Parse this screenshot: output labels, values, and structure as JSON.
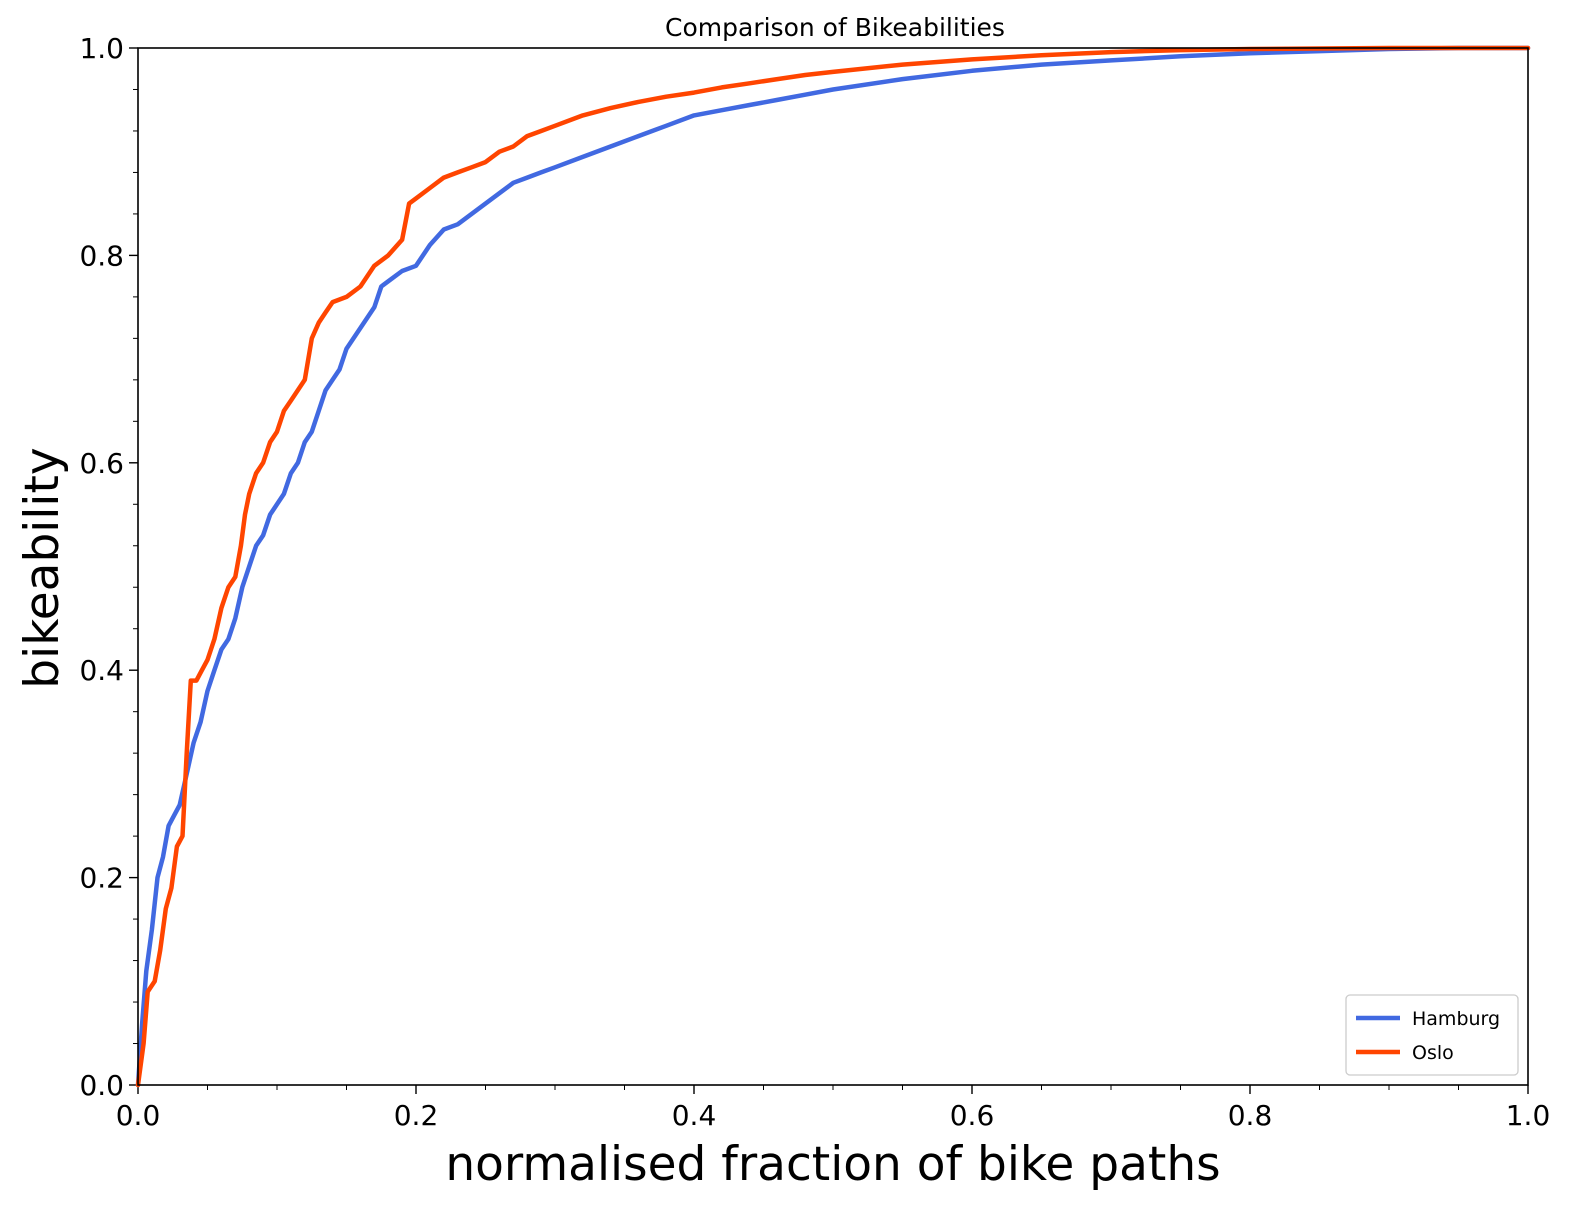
{
  "chart_data": {
    "type": "line",
    "title": "Comparison of Bikeabilities",
    "xlabel": "normalised fraction of bike paths",
    "ylabel": "bikeability",
    "xlim": [
      0.0,
      1.0
    ],
    "ylim": [
      0.0,
      1.0
    ],
    "x_ticks": [
      "0.0",
      "0.2",
      "0.4",
      "0.6",
      "0.8",
      "1.0"
    ],
    "y_ticks": [
      "0.0",
      "0.2",
      "0.4",
      "0.6",
      "0.8",
      "1.0"
    ],
    "grid": false,
    "legend_position": "bottom-right",
    "series": [
      {
        "name": "Hamburg",
        "color": "#4169e1",
        "points": [
          [
            0.0,
            0.0
          ],
          [
            0.003,
            0.06
          ],
          [
            0.006,
            0.11
          ],
          [
            0.01,
            0.15
          ],
          [
            0.014,
            0.2
          ],
          [
            0.018,
            0.22
          ],
          [
            0.022,
            0.25
          ],
          [
            0.026,
            0.26
          ],
          [
            0.03,
            0.27
          ],
          [
            0.035,
            0.3
          ],
          [
            0.04,
            0.33
          ],
          [
            0.045,
            0.35
          ],
          [
            0.05,
            0.38
          ],
          [
            0.055,
            0.4
          ],
          [
            0.06,
            0.42
          ],
          [
            0.065,
            0.43
          ],
          [
            0.07,
            0.45
          ],
          [
            0.075,
            0.48
          ],
          [
            0.08,
            0.5
          ],
          [
            0.085,
            0.52
          ],
          [
            0.09,
            0.53
          ],
          [
            0.095,
            0.55
          ],
          [
            0.1,
            0.56
          ],
          [
            0.105,
            0.57
          ],
          [
            0.11,
            0.59
          ],
          [
            0.115,
            0.6
          ],
          [
            0.12,
            0.62
          ],
          [
            0.125,
            0.63
          ],
          [
            0.13,
            0.65
          ],
          [
            0.135,
            0.67
          ],
          [
            0.14,
            0.68
          ],
          [
            0.145,
            0.69
          ],
          [
            0.15,
            0.71
          ],
          [
            0.16,
            0.73
          ],
          [
            0.17,
            0.75
          ],
          [
            0.175,
            0.77
          ],
          [
            0.18,
            0.775
          ],
          [
            0.19,
            0.785
          ],
          [
            0.2,
            0.79
          ],
          [
            0.21,
            0.81
          ],
          [
            0.22,
            0.825
          ],
          [
            0.23,
            0.83
          ],
          [
            0.24,
            0.84
          ],
          [
            0.25,
            0.85
          ],
          [
            0.26,
            0.86
          ],
          [
            0.27,
            0.87
          ],
          [
            0.28,
            0.875
          ],
          [
            0.29,
            0.88
          ],
          [
            0.3,
            0.885
          ],
          [
            0.32,
            0.895
          ],
          [
            0.34,
            0.905
          ],
          [
            0.36,
            0.915
          ],
          [
            0.38,
            0.925
          ],
          [
            0.4,
            0.935
          ],
          [
            0.42,
            0.94
          ],
          [
            0.44,
            0.945
          ],
          [
            0.46,
            0.95
          ],
          [
            0.48,
            0.955
          ],
          [
            0.5,
            0.96
          ],
          [
            0.55,
            0.97
          ],
          [
            0.6,
            0.978
          ],
          [
            0.65,
            0.984
          ],
          [
            0.7,
            0.988
          ],
          [
            0.75,
            0.992
          ],
          [
            0.8,
            0.995
          ],
          [
            0.85,
            0.997
          ],
          [
            0.9,
            0.999
          ],
          [
            0.95,
            1.0
          ],
          [
            1.0,
            1.0
          ]
        ]
      },
      {
        "name": "Oslo",
        "color": "#ff4500",
        "points": [
          [
            0.0,
            0.0
          ],
          [
            0.004,
            0.04
          ],
          [
            0.007,
            0.09
          ],
          [
            0.012,
            0.1
          ],
          [
            0.016,
            0.13
          ],
          [
            0.02,
            0.17
          ],
          [
            0.024,
            0.19
          ],
          [
            0.028,
            0.23
          ],
          [
            0.032,
            0.24
          ],
          [
            0.035,
            0.32
          ],
          [
            0.038,
            0.39
          ],
          [
            0.042,
            0.39
          ],
          [
            0.046,
            0.4
          ],
          [
            0.05,
            0.41
          ],
          [
            0.055,
            0.43
          ],
          [
            0.06,
            0.46
          ],
          [
            0.065,
            0.48
          ],
          [
            0.07,
            0.49
          ],
          [
            0.074,
            0.52
          ],
          [
            0.077,
            0.55
          ],
          [
            0.08,
            0.57
          ],
          [
            0.085,
            0.59
          ],
          [
            0.09,
            0.6
          ],
          [
            0.095,
            0.62
          ],
          [
            0.1,
            0.63
          ],
          [
            0.105,
            0.65
          ],
          [
            0.11,
            0.66
          ],
          [
            0.12,
            0.68
          ],
          [
            0.125,
            0.72
          ],
          [
            0.13,
            0.735
          ],
          [
            0.135,
            0.745
          ],
          [
            0.14,
            0.755
          ],
          [
            0.15,
            0.76
          ],
          [
            0.16,
            0.77
          ],
          [
            0.17,
            0.79
          ],
          [
            0.18,
            0.8
          ],
          [
            0.19,
            0.815
          ],
          [
            0.195,
            0.85
          ],
          [
            0.2,
            0.855
          ],
          [
            0.21,
            0.865
          ],
          [
            0.22,
            0.875
          ],
          [
            0.23,
            0.88
          ],
          [
            0.24,
            0.885
          ],
          [
            0.25,
            0.89
          ],
          [
            0.26,
            0.9
          ],
          [
            0.27,
            0.905
          ],
          [
            0.28,
            0.915
          ],
          [
            0.29,
            0.92
          ],
          [
            0.3,
            0.925
          ],
          [
            0.32,
            0.935
          ],
          [
            0.34,
            0.942
          ],
          [
            0.36,
            0.948
          ],
          [
            0.38,
            0.953
          ],
          [
            0.4,
            0.957
          ],
          [
            0.42,
            0.962
          ],
          [
            0.44,
            0.966
          ],
          [
            0.46,
            0.97
          ],
          [
            0.48,
            0.974
          ],
          [
            0.5,
            0.977
          ],
          [
            0.55,
            0.984
          ],
          [
            0.6,
            0.989
          ],
          [
            0.65,
            0.993
          ],
          [
            0.7,
            0.996
          ],
          [
            0.75,
            0.998
          ],
          [
            0.8,
            0.999
          ],
          [
            0.9,
            1.0
          ],
          [
            1.0,
            1.0
          ]
        ]
      }
    ]
  }
}
